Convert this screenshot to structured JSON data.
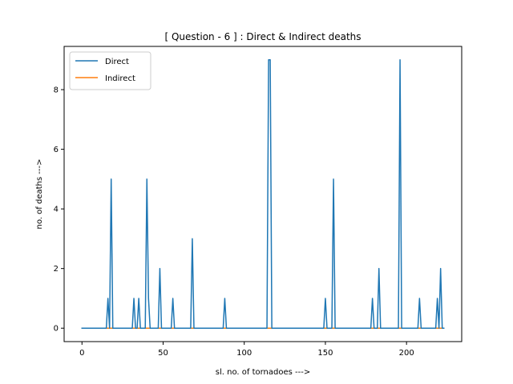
{
  "chart_data": {
    "type": "line",
    "title": "[ Question - 6 ] : Direct & Indirect deaths",
    "xlabel": "sl. no. of tornadoes --->",
    "ylabel": "no. of deaths --->",
    "xlim": [
      -11,
      234
    ],
    "ylim": [
      -0.45,
      9.45
    ],
    "xticks": [
      0,
      50,
      100,
      150,
      200
    ],
    "yticks": [
      0,
      2,
      4,
      6,
      8
    ],
    "legend_position": "upper-left",
    "n_points": 224,
    "series": [
      {
        "name": "Direct",
        "color": "#1f77b4",
        "spikes": [
          [
            16,
            1
          ],
          [
            18,
            5
          ],
          [
            32,
            1
          ],
          [
            35,
            1
          ],
          [
            40,
            5
          ],
          [
            41,
            1
          ],
          [
            48,
            2
          ],
          [
            56,
            1
          ],
          [
            68,
            3
          ],
          [
            88,
            1
          ],
          [
            115,
            9
          ],
          [
            116,
            9
          ],
          [
            150,
            1
          ],
          [
            155,
            5
          ],
          [
            179,
            1
          ],
          [
            183,
            2
          ],
          [
            196,
            9
          ],
          [
            208,
            1
          ],
          [
            219,
            1
          ],
          [
            221,
            2
          ]
        ]
      },
      {
        "name": "Indirect",
        "color": "#ff7f0e",
        "spikes": []
      }
    ]
  }
}
